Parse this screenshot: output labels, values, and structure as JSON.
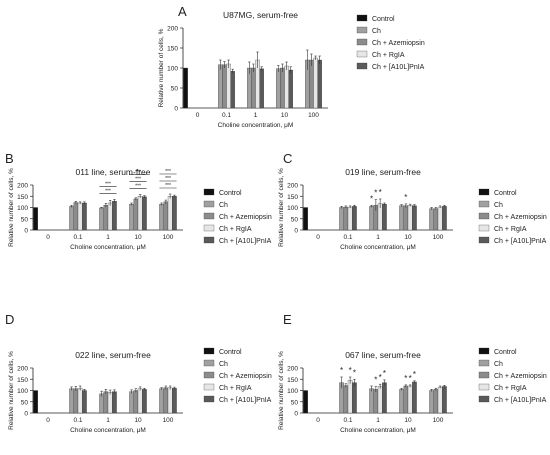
{
  "colors": {
    "control": "#111111",
    "ch": "#a0a0a0",
    "ch_azemiopsin": "#8c8c8c",
    "ch_rgia": "#e6e6e6",
    "ch_a10l_pnia": "#5a5a5a",
    "axis": "#222222",
    "error_bar": "#333333",
    "significance": "#222222"
  },
  "chart_data": [
    {
      "panel_letter": "A",
      "type": "bar",
      "title": "U87MG, serum-free",
      "xlabel": "Choline concentration, μM",
      "ylabel": "Relative number of cells, %",
      "ylim": [
        0,
        200
      ],
      "yticks": [
        0,
        50,
        100,
        150,
        200
      ],
      "categories": [
        "0",
        "0.1",
        "1",
        "10",
        "100"
      ],
      "legend_position": "right",
      "series": [
        {
          "name": "Control",
          "color_key": "control",
          "values": [
            100,
            null,
            null,
            null,
            null
          ],
          "errors": [
            0,
            null,
            null,
            null,
            null
          ]
        },
        {
          "name": "Ch",
          "color_key": "ch",
          "values": [
            null,
            108,
            100,
            98,
            120
          ],
          "errors": [
            null,
            12,
            15,
            8,
            25
          ]
        },
        {
          "name": "Ch + Azemiopsin",
          "color_key": "ch_azemiopsin",
          "values": [
            null,
            108,
            100,
            100,
            120
          ],
          "errors": [
            null,
            8,
            10,
            10,
            15
          ]
        },
        {
          "name": "Ch + RgIA",
          "color_key": "ch_rgia",
          "values": [
            null,
            110,
            120,
            105,
            125
          ],
          "errors": [
            null,
            10,
            20,
            10,
            5
          ]
        },
        {
          "name": "Ch + [A10L]PnIA",
          "color_key": "ch_a10l_pnia",
          "values": [
            null,
            92,
            98,
            95,
            120
          ],
          "errors": [
            null,
            5,
            5,
            8,
            10
          ]
        }
      ],
      "significance": []
    },
    {
      "panel_letter": "B",
      "type": "bar",
      "title": "011 line, serum-free",
      "xlabel": "Choline concentration, μM",
      "ylabel": "Relative number of cells, %",
      "ylim": [
        0,
        200
      ],
      "yticks": [
        0,
        50,
        100,
        150,
        200
      ],
      "categories": [
        "0",
        "0.1",
        "1",
        "10",
        "100"
      ],
      "legend_position": "right",
      "series": [
        {
          "name": "Control",
          "color_key": "control",
          "values": [
            100,
            null,
            null,
            null,
            null
          ],
          "errors": [
            0,
            null,
            null,
            null,
            null
          ]
        },
        {
          "name": "Ch",
          "color_key": "ch",
          "values": [
            null,
            105,
            98,
            115,
            115
          ],
          "errors": [
            null,
            5,
            3,
            5,
            5
          ]
        },
        {
          "name": "Ch + Azemiopsin",
          "color_key": "ch_azemiopsin",
          "values": [
            null,
            122,
            110,
            138,
            125
          ],
          "errors": [
            null,
            5,
            8,
            5,
            8
          ]
        },
        {
          "name": "Ch + RgIA",
          "color_key": "ch_rgia",
          "values": [
            null,
            120,
            120,
            150,
            150
          ],
          "errors": [
            null,
            5,
            12,
            8,
            10
          ]
        },
        {
          "name": "Ch + [A10L]PnIA",
          "color_key": "ch_a10l_pnia",
          "values": [
            null,
            120,
            128,
            148,
            150
          ],
          "errors": [
            null,
            5,
            8,
            5,
            5
          ]
        }
      ],
      "significance": [
        {
          "category": 2,
          "label": "***"
        },
        {
          "category": 2,
          "label": "***"
        },
        {
          "category": 3,
          "label": "***"
        },
        {
          "category": 3,
          "label": "***"
        },
        {
          "category": 3,
          "label": "***"
        },
        {
          "category": 4,
          "label": "***"
        },
        {
          "category": 4,
          "label": "***"
        },
        {
          "category": 4,
          "label": "***"
        }
      ]
    },
    {
      "panel_letter": "C",
      "type": "bar",
      "title": "019 line, serum-free",
      "xlabel": "Choline concentration, μM",
      "ylabel": "Relative number of cells, %",
      "ylim": [
        0,
        200
      ],
      "yticks": [
        0,
        50,
        100,
        150,
        200
      ],
      "categories": [
        "0",
        "0.1",
        "1",
        "10",
        "100"
      ],
      "legend_position": "right",
      "series": [
        {
          "name": "Control",
          "color_key": "control",
          "values": [
            100,
            null,
            null,
            null,
            null
          ],
          "errors": [
            0,
            null,
            null,
            null,
            null
          ]
        },
        {
          "name": "Ch",
          "color_key": "ch",
          "values": [
            null,
            100,
            105,
            108,
            95
          ],
          "errors": [
            null,
            5,
            5,
            5,
            5
          ]
        },
        {
          "name": "Ch + Azemiopsin",
          "color_key": "ch_azemiopsin",
          "values": [
            null,
            102,
            110,
            108,
            95
          ],
          "errors": [
            null,
            5,
            25,
            8,
            5
          ]
        },
        {
          "name": "Ch + RgIA",
          "color_key": "ch_rgia",
          "values": [
            null,
            102,
            118,
            110,
            102
          ],
          "errors": [
            null,
            5,
            20,
            5,
            5
          ]
        },
        {
          "name": "Ch + [A10L]PnIA",
          "color_key": "ch_a10l_pnia",
          "values": [
            null,
            105,
            115,
            108,
            105
          ],
          "errors": [
            null,
            5,
            5,
            5,
            5
          ]
        }
      ],
      "significance": [
        {
          "category": 2,
          "series": 1,
          "label": "*"
        },
        {
          "category": 2,
          "series": 2,
          "label": "*"
        },
        {
          "category": 2,
          "series": 3,
          "label": "*"
        },
        {
          "category": 3,
          "series": 2,
          "label": "*"
        }
      ]
    },
    {
      "panel_letter": "D",
      "type": "bar",
      "title": "022 line, serum-free",
      "xlabel": "Choline concentration, μM",
      "ylabel": "Relative number of cells, %",
      "ylim": [
        0,
        200
      ],
      "yticks": [
        0,
        50,
        100,
        150,
        200
      ],
      "categories": [
        "0",
        "0.1",
        "1",
        "10",
        "100"
      ],
      "legend_position": "right",
      "series": [
        {
          "name": "Control",
          "color_key": "control",
          "values": [
            100,
            null,
            null,
            null,
            null
          ],
          "errors": [
            0,
            null,
            null,
            null,
            null
          ]
        },
        {
          "name": "Ch",
          "color_key": "ch",
          "values": [
            null,
            108,
            85,
            95,
            108
          ],
          "errors": [
            null,
            8,
            12,
            8,
            5
          ]
        },
        {
          "name": "Ch + Azemiopsin",
          "color_key": "ch_azemiopsin",
          "values": [
            null,
            108,
            95,
            100,
            112
          ],
          "errors": [
            null,
            10,
            10,
            8,
            8
          ]
        },
        {
          "name": "Ch + RgIA",
          "color_key": "ch_rgia",
          "values": [
            null,
            110,
            92,
            108,
            112
          ],
          "errors": [
            null,
            10,
            10,
            8,
            8
          ]
        },
        {
          "name": "Ch + [A10L]PnIA",
          "color_key": "ch_a10l_pnia",
          "values": [
            null,
            100,
            95,
            105,
            110
          ],
          "errors": [
            null,
            5,
            8,
            5,
            5
          ]
        }
      ],
      "significance": []
    },
    {
      "panel_letter": "E",
      "type": "bar",
      "title": "067 line, serum-free",
      "xlabel": "Choline concentration, μM",
      "ylabel": "Relative number of cells, %",
      "ylim": [
        0,
        200
      ],
      "yticks": [
        0,
        50,
        100,
        150,
        200
      ],
      "categories": [
        "0",
        "0.1",
        "1",
        "10",
        "100"
      ],
      "legend_position": "right",
      "series": [
        {
          "name": "Control",
          "color_key": "control",
          "values": [
            100,
            null,
            null,
            null,
            null
          ],
          "errors": [
            0,
            null,
            null,
            null,
            null
          ]
        },
        {
          "name": "Ch",
          "color_key": "ch",
          "values": [
            null,
            135,
            108,
            105,
            100
          ],
          "errors": [
            null,
            25,
            12,
            5,
            5
          ]
        },
        {
          "name": "Ch + Azemiopsin",
          "color_key": "ch_azemiopsin",
          "values": [
            null,
            122,
            105,
            120,
            105
          ],
          "errors": [
            null,
            8,
            12,
            5,
            5
          ]
        },
        {
          "name": "Ch + RgIA",
          "color_key": "ch_rgia",
          "values": [
            null,
            145,
            118,
            120,
            115
          ],
          "errors": [
            null,
            15,
            10,
            5,
            5
          ]
        },
        {
          "name": "Ch + [A10L]PnIA",
          "color_key": "ch_a10l_pnia",
          "values": [
            null,
            135,
            135,
            138,
            118
          ],
          "errors": [
            null,
            15,
            12,
            5,
            5
          ]
        }
      ],
      "significance": [
        {
          "category": 1,
          "series": 1,
          "label": "*"
        },
        {
          "category": 1,
          "series": 3,
          "label": "*"
        },
        {
          "category": 1,
          "series": 4,
          "label": "*"
        },
        {
          "category": 2,
          "series": 2,
          "label": "*"
        },
        {
          "category": 2,
          "series": 3,
          "label": "*"
        },
        {
          "category": 2,
          "series": 4,
          "label": "*"
        },
        {
          "category": 3,
          "series": 2,
          "label": "*"
        },
        {
          "category": 3,
          "series": 3,
          "label": "*"
        },
        {
          "category": 3,
          "series": 4,
          "label": "*"
        }
      ]
    }
  ]
}
